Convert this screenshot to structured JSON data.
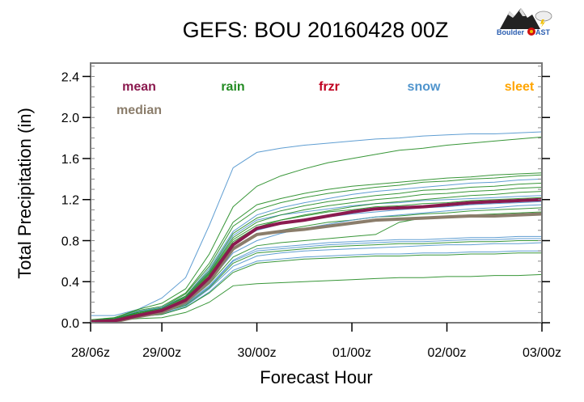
{
  "chart_data": {
    "type": "line",
    "title": "GEFS: BOU 20160428 00Z",
    "xlabel": "Forecast Hour",
    "ylabel": "Total Precipitation (in)",
    "xlim": [
      6,
      120
    ],
    "ylim": [
      0,
      2.53
    ],
    "x_ticks": [
      {
        "value": 6,
        "label": "28/06z"
      },
      {
        "value": 24,
        "label": "29/00z"
      },
      {
        "value": 48,
        "label": "30/00z"
      },
      {
        "value": 72,
        "label": "01/00z"
      },
      {
        "value": 96,
        "label": "02/00z"
      },
      {
        "value": 120,
        "label": "03/00z"
      }
    ],
    "y_ticks": [
      {
        "value": 0.0,
        "label": "0.0"
      },
      {
        "value": 0.4,
        "label": "0.4"
      },
      {
        "value": 0.8,
        "label": "0.8"
      },
      {
        "value": 1.2,
        "label": "1.2"
      },
      {
        "value": 1.6,
        "label": "1.6"
      },
      {
        "value": 2.0,
        "label": "2.0"
      },
      {
        "value": 2.4,
        "label": "2.4"
      }
    ],
    "y_minor_step": 0.1,
    "grid": false,
    "legend_placement": "top",
    "legend": [
      {
        "label": "mean",
        "color": "#8b1a4f"
      },
      {
        "label": "median",
        "color": "#8b7d6b"
      },
      {
        "label": "rain",
        "color": "#228b22"
      },
      {
        "label": "frzr",
        "color": "#c00020"
      },
      {
        "label": "snow",
        "color": "#4f94cd"
      },
      {
        "label": "sleet",
        "color": "#ffa500"
      }
    ],
    "x": [
      6,
      12,
      18,
      24,
      30,
      36,
      42,
      48,
      54,
      60,
      66,
      72,
      78,
      84,
      90,
      96,
      102,
      108,
      114,
      120
    ],
    "members": [
      {
        "type": "snow",
        "values": [
          0.07,
          0.07,
          0.13,
          0.24,
          0.44,
          0.95,
          1.51,
          1.66,
          1.7,
          1.73,
          1.75,
          1.77,
          1.79,
          1.8,
          1.82,
          1.83,
          1.84,
          1.84,
          1.85,
          1.86
        ]
      },
      {
        "type": "rain",
        "values": [
          0.03,
          0.05,
          0.13,
          0.19,
          0.33,
          0.67,
          1.13,
          1.33,
          1.43,
          1.5,
          1.56,
          1.6,
          1.64,
          1.68,
          1.7,
          1.73,
          1.75,
          1.77,
          1.79,
          1.81
        ]
      },
      {
        "type": "rain",
        "values": [
          0.02,
          0.05,
          0.12,
          0.16,
          0.29,
          0.58,
          0.98,
          1.15,
          1.21,
          1.26,
          1.3,
          1.33,
          1.35,
          1.37,
          1.39,
          1.41,
          1.42,
          1.44,
          1.45,
          1.46
        ]
      },
      {
        "type": "rain",
        "values": [
          0.02,
          0.04,
          0.11,
          0.15,
          0.28,
          0.55,
          0.94,
          1.1,
          1.17,
          1.22,
          1.26,
          1.29,
          1.32,
          1.34,
          1.37,
          1.38,
          1.4,
          1.41,
          1.43,
          1.44
        ]
      },
      {
        "type": "snow",
        "values": [
          0.02,
          0.04,
          0.11,
          0.15,
          0.26,
          0.53,
          0.89,
          1.05,
          1.12,
          1.17,
          1.21,
          1.25,
          1.28,
          1.3,
          1.32,
          1.34,
          1.36,
          1.37,
          1.39,
          1.4
        ]
      },
      {
        "type": "rain",
        "values": [
          0.02,
          0.04,
          0.1,
          0.14,
          0.26,
          0.51,
          0.87,
          1.02,
          1.09,
          1.14,
          1.18,
          1.21,
          1.24,
          1.26,
          1.29,
          1.3,
          1.32,
          1.33,
          1.35,
          1.36
        ]
      },
      {
        "type": "snow",
        "values": [
          0.02,
          0.04,
          0.1,
          0.14,
          0.25,
          0.5,
          0.85,
          1.0,
          1.05,
          1.08,
          1.11,
          1.14,
          1.16,
          1.17,
          1.19,
          1.2,
          1.21,
          1.22,
          1.23,
          1.24
        ]
      },
      {
        "type": "rain",
        "values": [
          0.02,
          0.04,
          0.1,
          0.14,
          0.25,
          0.49,
          0.83,
          0.98,
          1.05,
          1.1,
          1.14,
          1.17,
          1.2,
          1.22,
          1.25,
          1.26,
          1.28,
          1.29,
          1.31,
          1.32
        ]
      },
      {
        "type": "rain",
        "values": [
          0.02,
          0.04,
          0.1,
          0.13,
          0.24,
          0.48,
          0.81,
          0.95,
          1.0,
          1.04,
          1.08,
          1.1,
          1.13,
          1.14,
          1.16,
          1.17,
          1.19,
          1.2,
          1.21,
          1.22
        ]
      },
      {
        "type": "snow",
        "values": [
          0.02,
          0.04,
          0.09,
          0.13,
          0.23,
          0.45,
          0.77,
          0.9,
          0.96,
          1.0,
          1.03,
          1.06,
          1.08,
          1.1,
          1.12,
          1.13,
          1.15,
          1.16,
          1.17,
          1.18
        ]
      },
      {
        "type": "rain",
        "values": [
          0.02,
          0.03,
          0.09,
          0.12,
          0.21,
          0.43,
          0.72,
          0.85,
          0.9,
          0.94,
          0.98,
          1.0,
          1.03,
          1.04,
          1.06,
          1.07,
          1.09,
          1.1,
          1.11,
          1.12
        ]
      },
      {
        "type": "rain",
        "values": [
          0.02,
          0.03,
          0.08,
          0.11,
          0.19,
          0.38,
          0.64,
          0.75,
          0.78,
          0.8,
          0.82,
          0.84,
          0.86,
          0.98,
          1.02,
          1.04,
          1.05,
          1.06,
          1.07,
          1.08
        ]
      },
      {
        "type": "snow",
        "values": [
          0.01,
          0.03,
          0.07,
          0.1,
          0.18,
          0.36,
          0.61,
          0.72,
          0.74,
          0.76,
          0.78,
          0.79,
          0.8,
          0.81,
          0.81,
          0.82,
          0.83,
          0.83,
          0.84,
          0.84
        ]
      },
      {
        "type": "snow",
        "values": [
          0.01,
          0.03,
          0.07,
          0.1,
          0.18,
          0.35,
          0.6,
          0.7,
          0.72,
          0.74,
          0.76,
          0.77,
          0.78,
          0.79,
          0.79,
          0.8,
          0.81,
          0.81,
          0.82,
          0.82
        ]
      },
      {
        "type": "rain",
        "values": [
          0.01,
          0.03,
          0.07,
          0.1,
          0.17,
          0.34,
          0.58,
          0.68,
          0.7,
          0.72,
          0.74,
          0.75,
          0.76,
          0.77,
          0.77,
          0.78,
          0.79,
          0.79,
          0.8,
          0.8
        ]
      },
      {
        "type": "snow",
        "values": [
          0.01,
          0.03,
          0.07,
          0.09,
          0.16,
          0.33,
          0.55,
          0.65,
          0.68,
          0.7,
          0.71,
          0.72,
          0.73,
          0.74,
          0.75,
          0.76,
          0.76,
          0.77,
          0.77,
          0.78
        ]
      },
      {
        "type": "snow",
        "values": [
          0.01,
          0.02,
          0.06,
          0.08,
          0.15,
          0.3,
          0.51,
          0.6,
          0.62,
          0.64,
          0.65,
          0.66,
          0.67,
          0.67,
          0.68,
          0.68,
          0.69,
          0.69,
          0.7,
          0.7
        ]
      },
      {
        "type": "rain",
        "values": [
          0.01,
          0.02,
          0.06,
          0.08,
          0.15,
          0.29,
          0.49,
          0.58,
          0.6,
          0.62,
          0.63,
          0.64,
          0.65,
          0.65,
          0.66,
          0.66,
          0.67,
          0.67,
          0.68,
          0.68
        ]
      },
      {
        "type": "rain",
        "values": [
          0.01,
          0.02,
          0.04,
          0.05,
          0.1,
          0.2,
          0.36,
          0.38,
          0.39,
          0.4,
          0.41,
          0.42,
          0.43,
          0.44,
          0.44,
          0.45,
          0.45,
          0.46,
          0.46,
          0.47
        ]
      },
      {
        "type": "rain",
        "values": [
          0.02,
          0.04,
          0.09,
          0.13,
          0.23,
          0.47,
          0.79,
          0.93,
          1.0,
          1.05,
          1.09,
          1.13,
          1.16,
          1.18,
          1.2,
          1.22,
          1.24,
          1.25,
          1.27,
          1.28
        ]
      },
      {
        "type": "snow",
        "values": [
          0.02,
          0.03,
          0.08,
          0.11,
          0.2,
          0.4,
          0.68,
          0.8,
          0.87,
          0.92,
          0.96,
          1.0,
          1.03,
          1.05,
          1.07,
          1.09,
          1.11,
          1.12,
          1.14,
          1.15
        ]
      }
    ],
    "mean": [
      0.01,
      0.02,
      0.07,
      0.12,
      0.22,
      0.44,
      0.76,
      0.92,
      0.97,
      1.0,
      1.04,
      1.08,
      1.11,
      1.12,
      1.13,
      1.15,
      1.17,
      1.18,
      1.19,
      1.2
    ],
    "median": [
      0.01,
      0.01,
      0.06,
      0.1,
      0.2,
      0.4,
      0.72,
      0.86,
      0.89,
      0.91,
      0.94,
      0.97,
      1.0,
      1.01,
      1.02,
      1.03,
      1.04,
      1.04,
      1.05,
      1.06
    ],
    "type_colors": {
      "rain": "#228b22",
      "snow": "#4f94cd",
      "frzr": "#c00020",
      "sleet": "#ffa500",
      "mean": "#8b1a4f",
      "median": "#8b7d6b"
    }
  },
  "logo": {
    "text": "BoulderCAST"
  }
}
